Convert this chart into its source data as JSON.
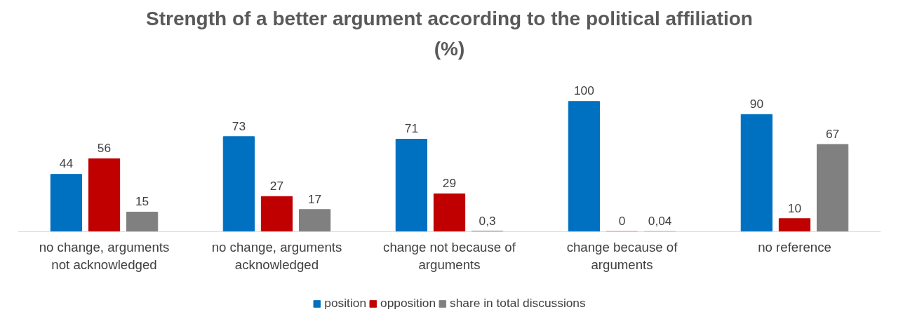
{
  "chart_data": {
    "type": "bar",
    "title": "Strength of a better argument according to the political affiliation (%)",
    "categories": [
      "no change, arguments not acknowledged",
      "no change, arguments acknowledged",
      "change not because of arguments",
      "change because of arguments",
      "no reference"
    ],
    "series": [
      {
        "name": "position",
        "color": "#0070c0",
        "values": [
          44,
          73,
          71,
          100,
          90
        ]
      },
      {
        "name": "opposition",
        "color": "#c00000",
        "values": [
          56,
          27,
          29,
          0,
          10
        ]
      },
      {
        "name": "share in total discussions",
        "color": "#808080",
        "values": [
          15,
          17,
          0.3,
          0.04,
          67
        ],
        "value_labels": [
          "15",
          "17",
          "0,3",
          "0,04",
          "67"
        ]
      }
    ],
    "data_labels": true,
    "grid": false,
    "legend": "bottom"
  }
}
